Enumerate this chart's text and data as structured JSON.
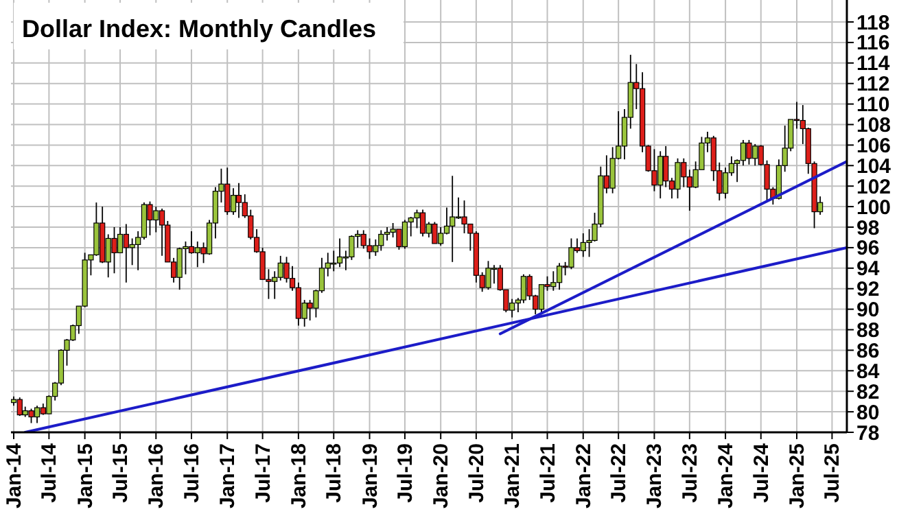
{
  "chart_data": {
    "type": "candlestick",
    "title": "Dollar Index: Monthly Candles",
    "x": [
      "2014-01",
      "2014-02",
      "2014-03",
      "2014-04",
      "2014-05",
      "2014-06",
      "2014-07",
      "2014-08",
      "2014-09",
      "2014-10",
      "2014-11",
      "2014-12",
      "2015-01",
      "2015-02",
      "2015-03",
      "2015-04",
      "2015-05",
      "2015-06",
      "2015-07",
      "2015-08",
      "2015-09",
      "2015-10",
      "2015-11",
      "2015-12",
      "2016-01",
      "2016-02",
      "2016-03",
      "2016-04",
      "2016-05",
      "2016-06",
      "2016-07",
      "2016-08",
      "2016-09",
      "2016-10",
      "2016-11",
      "2016-12",
      "2017-01",
      "2017-02",
      "2017-03",
      "2017-04",
      "2017-05",
      "2017-06",
      "2017-07",
      "2017-08",
      "2017-09",
      "2017-10",
      "2017-11",
      "2017-12",
      "2018-01",
      "2018-02",
      "2018-03",
      "2018-04",
      "2018-05",
      "2018-06",
      "2018-07",
      "2018-08",
      "2018-09",
      "2018-10",
      "2018-11",
      "2018-12",
      "2019-01",
      "2019-02",
      "2019-03",
      "2019-04",
      "2019-05",
      "2019-06",
      "2019-07",
      "2019-08",
      "2019-09",
      "2019-10",
      "2019-11",
      "2019-12",
      "2020-01",
      "2020-02",
      "2020-03",
      "2020-04",
      "2020-05",
      "2020-06",
      "2020-07",
      "2020-08",
      "2020-09",
      "2020-10",
      "2020-11",
      "2020-12",
      "2021-01",
      "2021-02",
      "2021-03",
      "2021-04",
      "2021-05",
      "2021-06",
      "2021-07",
      "2021-08",
      "2021-09",
      "2021-10",
      "2021-11",
      "2021-12",
      "2022-01",
      "2022-02",
      "2022-03",
      "2022-04",
      "2022-05",
      "2022-06",
      "2022-07",
      "2022-08",
      "2022-09",
      "2022-10",
      "2022-11",
      "2022-12",
      "2023-01",
      "2023-02",
      "2023-03",
      "2023-04",
      "2023-05",
      "2023-06",
      "2023-07",
      "2023-08",
      "2023-09",
      "2023-10",
      "2023-11",
      "2023-12",
      "2024-01",
      "2024-02",
      "2024-03",
      "2024-04",
      "2024-05",
      "2024-06",
      "2024-07",
      "2024-08",
      "2024-09",
      "2024-10",
      "2024-11",
      "2024-12",
      "2025-01",
      "2025-02",
      "2025-03",
      "2025-04",
      "2025-05"
    ],
    "ohlc": [
      [
        80.9,
        81.5,
        80.6,
        81.2
      ],
      [
        81.2,
        81.4,
        79.6,
        79.7
      ],
      [
        79.7,
        80.5,
        79.5,
        80.1
      ],
      [
        80.1,
        80.3,
        78.9,
        79.5
      ],
      [
        79.5,
        80.6,
        78.9,
        80.4
      ],
      [
        80.4,
        80.8,
        79.7,
        79.8
      ],
      [
        79.8,
        81.6,
        79.8,
        81.5
      ],
      [
        81.5,
        82.9,
        81.1,
        82.8
      ],
      [
        82.8,
        86.1,
        82.6,
        86.0
      ],
      [
        86.0,
        87.1,
        84.5,
        87.0
      ],
      [
        87.0,
        88.5,
        86.9,
        88.4
      ],
      [
        88.4,
        90.3,
        87.6,
        90.3
      ],
      [
        90.3,
        95.5,
        90.2,
        94.8
      ],
      [
        94.8,
        95.3,
        93.3,
        95.3
      ],
      [
        95.3,
        100.4,
        95.2,
        98.4
      ],
      [
        98.4,
        100.0,
        94.5,
        94.6
      ],
      [
        94.6,
        97.3,
        93.1,
        96.9
      ],
      [
        96.9,
        98.0,
        93.5,
        95.5
      ],
      [
        95.5,
        98.0,
        95.5,
        97.3
      ],
      [
        97.3,
        98.3,
        92.6,
        96.0
      ],
      [
        96.0,
        96.9,
        94.3,
        96.3
      ],
      [
        96.3,
        97.6,
        93.8,
        97.0
      ],
      [
        97.0,
        100.4,
        96.8,
        100.2
      ],
      [
        100.2,
        100.5,
        97.2,
        98.7
      ],
      [
        98.7,
        100.0,
        97.5,
        99.6
      ],
      [
        99.6,
        99.8,
        95.2,
        98.2
      ],
      [
        98.2,
        98.6,
        94.6,
        94.6
      ],
      [
        94.6,
        95.0,
        92.6,
        93.1
      ],
      [
        93.1,
        96.0,
        91.9,
        95.9
      ],
      [
        95.9,
        96.6,
        93.4,
        96.1
      ],
      [
        96.1,
        97.6,
        95.4,
        95.5
      ],
      [
        95.5,
        96.6,
        94.1,
        96.0
      ],
      [
        96.0,
        96.5,
        94.5,
        95.4
      ],
      [
        95.4,
        98.7,
        95.3,
        98.4
      ],
      [
        98.4,
        101.9,
        96.9,
        101.5
      ],
      [
        101.5,
        103.7,
        100.4,
        102.2
      ],
      [
        102.2,
        103.8,
        99.2,
        99.5
      ],
      [
        99.5,
        101.8,
        99.2,
        101.1
      ],
      [
        101.1,
        102.3,
        98.9,
        100.4
      ],
      [
        100.4,
        101.2,
        98.9,
        99.1
      ],
      [
        99.1,
        99.7,
        96.8,
        97.0
      ],
      [
        97.0,
        97.8,
        95.5,
        95.6
      ],
      [
        95.6,
        96.0,
        92.9,
        92.9
      ],
      [
        92.9,
        93.9,
        91.0,
        92.7
      ],
      [
        92.7,
        93.7,
        91.0,
        93.1
      ],
      [
        93.1,
        95.2,
        92.8,
        94.5
      ],
      [
        94.5,
        95.1,
        92.6,
        93.0
      ],
      [
        93.0,
        94.2,
        91.8,
        92.1
      ],
      [
        92.1,
        92.6,
        88.4,
        89.1
      ],
      [
        89.1,
        90.9,
        88.3,
        90.6
      ],
      [
        90.6,
        90.9,
        88.9,
        90.1
      ],
      [
        90.1,
        91.9,
        89.2,
        91.8
      ],
      [
        91.8,
        95.0,
        91.6,
        94.0
      ],
      [
        94.0,
        95.5,
        93.2,
        94.5
      ],
      [
        94.5,
        95.7,
        93.7,
        94.5
      ],
      [
        94.5,
        96.9,
        94.1,
        95.1
      ],
      [
        95.1,
        95.7,
        93.8,
        95.1
      ],
      [
        95.1,
        97.2,
        94.8,
        97.1
      ],
      [
        97.1,
        97.7,
        96.0,
        97.3
      ],
      [
        97.3,
        97.7,
        95.9,
        96.2
      ],
      [
        96.2,
        96.9,
        94.9,
        95.6
      ],
      [
        95.6,
        96.8,
        95.2,
        96.2
      ],
      [
        96.2,
        97.7,
        95.7,
        97.3
      ],
      [
        97.3,
        98.0,
        96.7,
        97.5
      ],
      [
        97.5,
        98.4,
        97.0,
        97.8
      ],
      [
        97.8,
        97.8,
        95.8,
        96.1
      ],
      [
        96.1,
        98.7,
        95.9,
        98.5
      ],
      [
        98.5,
        99.0,
        97.1,
        98.9
      ],
      [
        98.9,
        99.7,
        97.9,
        99.4
      ],
      [
        99.4,
        99.7,
        97.1,
        97.4
      ],
      [
        97.4,
        98.5,
        97.0,
        98.3
      ],
      [
        98.3,
        98.5,
        96.4,
        96.4
      ],
      [
        96.4,
        98.0,
        96.2,
        97.4
      ],
      [
        97.4,
        99.9,
        97.3,
        98.1
      ],
      [
        98.1,
        103.0,
        94.6,
        99.0
      ],
      [
        99.0,
        100.9,
        98.8,
        99.0
      ],
      [
        99.0,
        100.6,
        97.4,
        98.3
      ],
      [
        98.3,
        98.3,
        95.7,
        97.4
      ],
      [
        97.4,
        97.6,
        92.6,
        93.3
      ],
      [
        93.3,
        93.6,
        91.7,
        92.1
      ],
      [
        92.1,
        94.7,
        91.9,
        94.0
      ],
      [
        94.0,
        94.3,
        92.5,
        94.0
      ],
      [
        94.0,
        94.3,
        91.8,
        91.9
      ],
      [
        91.9,
        91.9,
        89.7,
        89.9
      ],
      [
        89.9,
        91.0,
        89.2,
        90.6
      ],
      [
        90.6,
        91.1,
        89.7,
        90.9
      ],
      [
        90.9,
        93.4,
        90.6,
        93.2
      ],
      [
        93.2,
        93.4,
        90.9,
        91.3
      ],
      [
        91.3,
        91.4,
        89.5,
        90.0
      ],
      [
        90.0,
        92.4,
        89.5,
        92.4
      ],
      [
        92.4,
        93.2,
        91.8,
        92.2
      ],
      [
        92.2,
        93.7,
        91.8,
        92.6
      ],
      [
        92.6,
        94.5,
        91.9,
        94.2
      ],
      [
        94.2,
        94.6,
        93.3,
        94.1
      ],
      [
        94.1,
        96.9,
        93.9,
        96.0
      ],
      [
        96.0,
        96.9,
        95.5,
        95.7
      ],
      [
        95.7,
        97.4,
        95.1,
        96.5
      ],
      [
        96.5,
        97.8,
        95.1,
        96.7
      ],
      [
        96.7,
        99.4,
        96.6,
        98.3
      ],
      [
        98.3,
        103.9,
        98.0,
        103.0
      ],
      [
        103.0,
        105.0,
        101.3,
        101.8
      ],
      [
        101.8,
        105.8,
        101.3,
        104.7
      ],
      [
        104.7,
        109.3,
        104.6,
        105.9
      ],
      [
        105.9,
        109.5,
        104.6,
        108.7
      ],
      [
        108.7,
        114.8,
        107.6,
        112.1
      ],
      [
        112.1,
        113.9,
        109.5,
        111.5
      ],
      [
        111.5,
        113.1,
        105.3,
        105.9
      ],
      [
        105.9,
        106.0,
        103.4,
        103.5
      ],
      [
        103.5,
        105.6,
        101.5,
        102.1
      ],
      [
        102.1,
        105.4,
        100.8,
        104.9
      ],
      [
        104.9,
        105.9,
        101.9,
        102.5
      ],
      [
        102.5,
        102.8,
        100.8,
        101.7
      ],
      [
        101.7,
        104.7,
        100.8,
        104.3
      ],
      [
        104.3,
        104.7,
        101.9,
        102.9
      ],
      [
        102.9,
        103.6,
        99.6,
        101.9
      ],
      [
        101.9,
        104.4,
        101.8,
        103.6
      ],
      [
        103.6,
        106.8,
        103.6,
        106.2
      ],
      [
        106.2,
        107.3,
        105.3,
        106.7
      ],
      [
        106.7,
        106.9,
        102.5,
        103.5
      ],
      [
        103.5,
        104.3,
        100.6,
        101.3
      ],
      [
        101.3,
        103.8,
        100.8,
        103.3
      ],
      [
        103.3,
        104.9,
        103.0,
        104.2
      ],
      [
        104.2,
        104.6,
        102.4,
        104.5
      ],
      [
        104.5,
        106.5,
        104.0,
        106.2
      ],
      [
        106.2,
        106.5,
        104.1,
        104.7
      ],
      [
        104.7,
        106.1,
        104.0,
        105.9
      ],
      [
        105.9,
        106.0,
        104.0,
        104.1
      ],
      [
        104.1,
        104.5,
        100.5,
        101.7
      ],
      [
        101.7,
        101.9,
        100.2,
        100.8
      ],
      [
        100.8,
        104.6,
        100.7,
        104.0
      ],
      [
        104.0,
        107.9,
        103.4,
        105.7
      ],
      [
        105.7,
        108.5,
        105.4,
        108.5
      ],
      [
        108.5,
        110.2,
        107.6,
        108.4
      ],
      [
        108.4,
        109.9,
        106.1,
        107.6
      ],
      [
        107.6,
        107.7,
        103.2,
        104.2
      ],
      [
        104.2,
        104.4,
        97.9,
        99.5
      ],
      [
        99.5,
        101.0,
        99.2,
        100.4
      ]
    ],
    "colors": [
      "#9ac43c",
      "#dd1f1a",
      "#9ac43c",
      "#dd1f1a",
      "#9ac43c",
      "#dd1f1a",
      "#9ac43c",
      "#9ac43c",
      "#9ac43c",
      "#9ac43c",
      "#9ac43c",
      "#9ac43c",
      "#9ac43c",
      "#9ac43c",
      "#9ac43c",
      "#dd1f1a",
      "#9ac43c",
      "#dd1f1a",
      "#9ac43c",
      "#dd1f1a",
      "#9ac43c",
      "#9ac43c",
      "#9ac43c",
      "#dd1f1a",
      "#9ac43c",
      "#dd1f1a",
      "#dd1f1a",
      "#dd1f1a",
      "#9ac43c",
      "#9ac43c",
      "#dd1f1a",
      "#9ac43c",
      "#dd1f1a",
      "#9ac43c",
      "#9ac43c",
      "#9ac43c",
      "#dd1f1a",
      "#9ac43c",
      "#dd1f1a",
      "#dd1f1a",
      "#dd1f1a",
      "#dd1f1a",
      "#dd1f1a",
      "#dd1f1a",
      "#9ac43c",
      "#9ac43c",
      "#dd1f1a",
      "#dd1f1a",
      "#dd1f1a",
      "#9ac43c",
      "#dd1f1a",
      "#9ac43c",
      "#9ac43c",
      "#9ac43c",
      "#9ac43c",
      "#9ac43c",
      "#9ac43c",
      "#9ac43c",
      "#9ac43c",
      "#dd1f1a",
      "#dd1f1a",
      "#9ac43c",
      "#9ac43c",
      "#9ac43c",
      "#9ac43c",
      "#dd1f1a",
      "#9ac43c",
      "#9ac43c",
      "#9ac43c",
      "#dd1f1a",
      "#9ac43c",
      "#dd1f1a",
      "#9ac43c",
      "#9ac43c",
      "#9ac43c",
      "#9ac43c",
      "#dd1f1a",
      "#dd1f1a",
      "#dd1f1a",
      "#dd1f1a",
      "#9ac43c",
      "#9ac43c",
      "#dd1f1a",
      "#dd1f1a",
      "#9ac43c",
      "#9ac43c",
      "#9ac43c",
      "#dd1f1a",
      "#dd1f1a",
      "#9ac43c",
      "#dd1f1a",
      "#9ac43c",
      "#9ac43c",
      "#dd1f1a",
      "#9ac43c",
      "#dd1f1a",
      "#9ac43c",
      "#9ac43c",
      "#9ac43c",
      "#9ac43c",
      "#dd1f1a",
      "#9ac43c",
      "#9ac43c",
      "#9ac43c",
      "#9ac43c",
      "#dd1f1a",
      "#dd1f1a",
      "#dd1f1a",
      "#dd1f1a",
      "#9ac43c",
      "#dd1f1a",
      "#dd1f1a",
      "#9ac43c",
      "#dd1f1a",
      "#dd1f1a",
      "#9ac43c",
      "#9ac43c",
      "#9ac43c",
      "#dd1f1a",
      "#dd1f1a",
      "#9ac43c",
      "#9ac43c",
      "#9ac43c",
      "#9ac43c",
      "#dd1f1a",
      "#9ac43c",
      "#dd1f1a",
      "#dd1f1a",
      "#dd1f1a",
      "#9ac43c",
      "#9ac43c",
      "#9ac43c",
      "#dd1f1a",
      "#dd1f1a",
      "#dd1f1a",
      "#dd1f1a",
      "#9ac43c"
    ],
    "series": [
      {
        "type": "line",
        "color": "#1c1cc8",
        "x": [
          "2014-03",
          "2025-09-15"
        ],
        "values": [
          78,
          96
        ]
      },
      {
        "type": "line",
        "color": "#1c1cc8",
        "x": [
          "2020-11",
          "2025-09-15"
        ],
        "values": [
          87.6,
          104.4
        ]
      }
    ],
    "xlim": [
      "2013-12-18",
      "2025-09-15"
    ],
    "xticks": [
      {
        "value": "2014-01",
        "label": "Jan-14"
      },
      {
        "value": "2014-07",
        "label": "Jul-14"
      },
      {
        "value": "2015-01",
        "label": "Jan-15"
      },
      {
        "value": "2015-07",
        "label": "Jul-15"
      },
      {
        "value": "2016-01",
        "label": "Jan-16"
      },
      {
        "value": "2016-07",
        "label": "Jul-16"
      },
      {
        "value": "2017-01",
        "label": "Jan-17"
      },
      {
        "value": "2017-07",
        "label": "Jul-17"
      },
      {
        "value": "2018-01",
        "label": "Jan-18"
      },
      {
        "value": "2018-07",
        "label": "Jul-18"
      },
      {
        "value": "2019-01",
        "label": "Jan-19"
      },
      {
        "value": "2019-07",
        "label": "Jul-19"
      },
      {
        "value": "2020-01",
        "label": "Jan-20"
      },
      {
        "value": "2020-07",
        "label": "Jul-20"
      },
      {
        "value": "2021-01",
        "label": "Jan-21"
      },
      {
        "value": "2021-07",
        "label": "Jul-21"
      },
      {
        "value": "2022-01",
        "label": "Jan-22"
      },
      {
        "value": "2022-07",
        "label": "Jul-22"
      },
      {
        "value": "2023-01",
        "label": "Jan-23"
      },
      {
        "value": "2023-07",
        "label": "Jul-23"
      },
      {
        "value": "2024-01",
        "label": "Jan-24"
      },
      {
        "value": "2024-07",
        "label": "Jul-24"
      },
      {
        "value": "2025-01",
        "label": "Jan-25"
      },
      {
        "value": "2025-07",
        "label": "Jul-25"
      }
    ],
    "ylim": [
      78,
      118
    ],
    "yticks": [
      78,
      80,
      82,
      84,
      86,
      88,
      90,
      92,
      94,
      96,
      98,
      100,
      102,
      104,
      106,
      108,
      110,
      112,
      114,
      116,
      118
    ],
    "grid": true
  }
}
